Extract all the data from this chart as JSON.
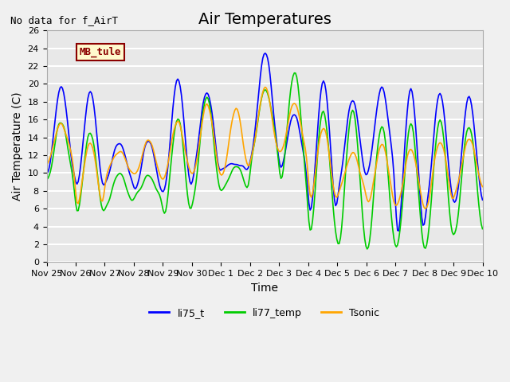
{
  "title": "Air Temperatures",
  "annotation_text": "No data for f_AirT",
  "label_box_text": "MB_tule",
  "ylabel": "Air Temperature (C)",
  "xlabel": "Time",
  "ylim": [
    0,
    26
  ],
  "yticks": [
    0,
    2,
    4,
    6,
    8,
    10,
    12,
    14,
    16,
    18,
    20,
    22,
    24,
    26
  ],
  "xtick_labels": [
    "Nov 25",
    "Nov 26",
    "Nov 27",
    "Nov 28",
    "Nov 29",
    "Nov 30",
    "Dec 1",
    "Dec 2",
    "Dec 3",
    "Dec 4",
    "Dec 5",
    "Dec 6",
    "Dec 7",
    "Dec 8",
    "Dec 9",
    "Dec 10"
  ],
  "series_colors": {
    "li75_t": "#0000FF",
    "li77_temp": "#00CC00",
    "Tsonic": "#FFA500"
  },
  "background_color": "#E8E8E8",
  "plot_bg_color": "#E8E8E8",
  "grid_color": "#FFFFFF",
  "title_fontsize": 14,
  "label_fontsize": 10,
  "tick_fontsize": 8,
  "legend_entries": [
    "li75_t",
    "li77_temp",
    "Tsonic"
  ]
}
